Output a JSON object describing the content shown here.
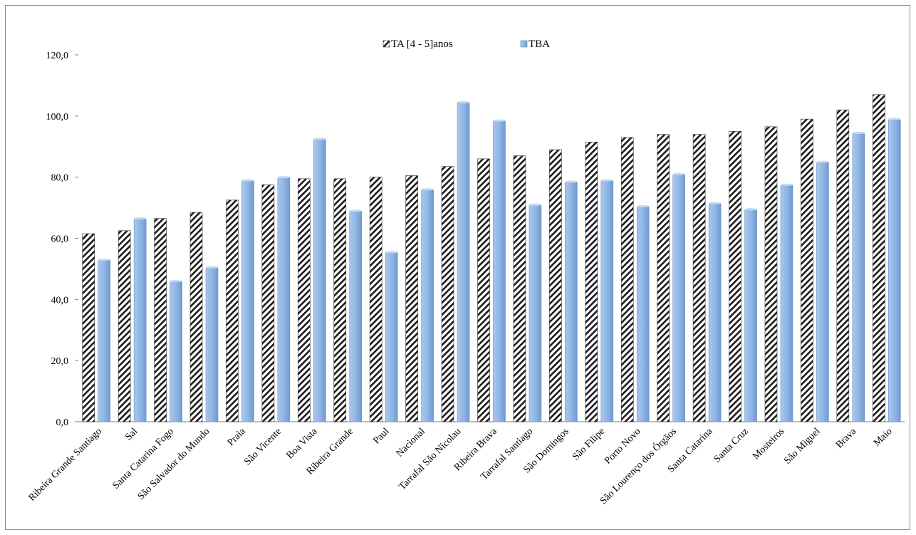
{
  "chart_data": {
    "type": "bar",
    "title": "",
    "xlabel": "",
    "ylabel": "",
    "ylim": [
      0,
      120
    ],
    "yticks": [
      "0,0",
      "20,0",
      "40,0",
      "60,0",
      "80,0",
      "100,0",
      "120,0"
    ],
    "grid": false,
    "legend_position": "top-center",
    "categories": [
      "Ribeira Grande Santiago",
      "Sal",
      "Santa Catarina Fogo",
      "São Salvador do Mundo",
      "Praia",
      "São Vicente",
      "Boa Vista",
      "Ribeira Grande",
      "Paul",
      "Nacional",
      "Tarrafal São Nicolau",
      "Ribeira Brava",
      "Tarrafal Santiago",
      "São Domingos",
      "São Filipe",
      "Porto Novo",
      "São Lourenço dos Órgãos",
      "Santa Catarina",
      "Santa Cruz",
      "Mosteiros",
      "São Miguel",
      "Brava",
      "Maio"
    ],
    "series": [
      {
        "name": "TA [4 - 5]anos",
        "color": "#000000",
        "pattern": "diagonal-hatch",
        "values": [
          61.5,
          62.5,
          66.5,
          68.5,
          72.5,
          77.5,
          79.5,
          79.5,
          80.0,
          80.5,
          83.5,
          86.0,
          87.0,
          89.0,
          91.5,
          93.0,
          94.0,
          94.0,
          95.0,
          96.5,
          99.0,
          102.0,
          107.0
        ]
      },
      {
        "name": "TBA",
        "color": "#8db4e2",
        "values": [
          53.0,
          66.5,
          46.0,
          50.5,
          79.0,
          80.0,
          92.5,
          69.0,
          55.5,
          76.0,
          104.5,
          98.5,
          71.0,
          78.5,
          79.0,
          70.5,
          81.0,
          71.5,
          69.5,
          77.5,
          85.0,
          94.5,
          99.0
        ]
      }
    ]
  }
}
